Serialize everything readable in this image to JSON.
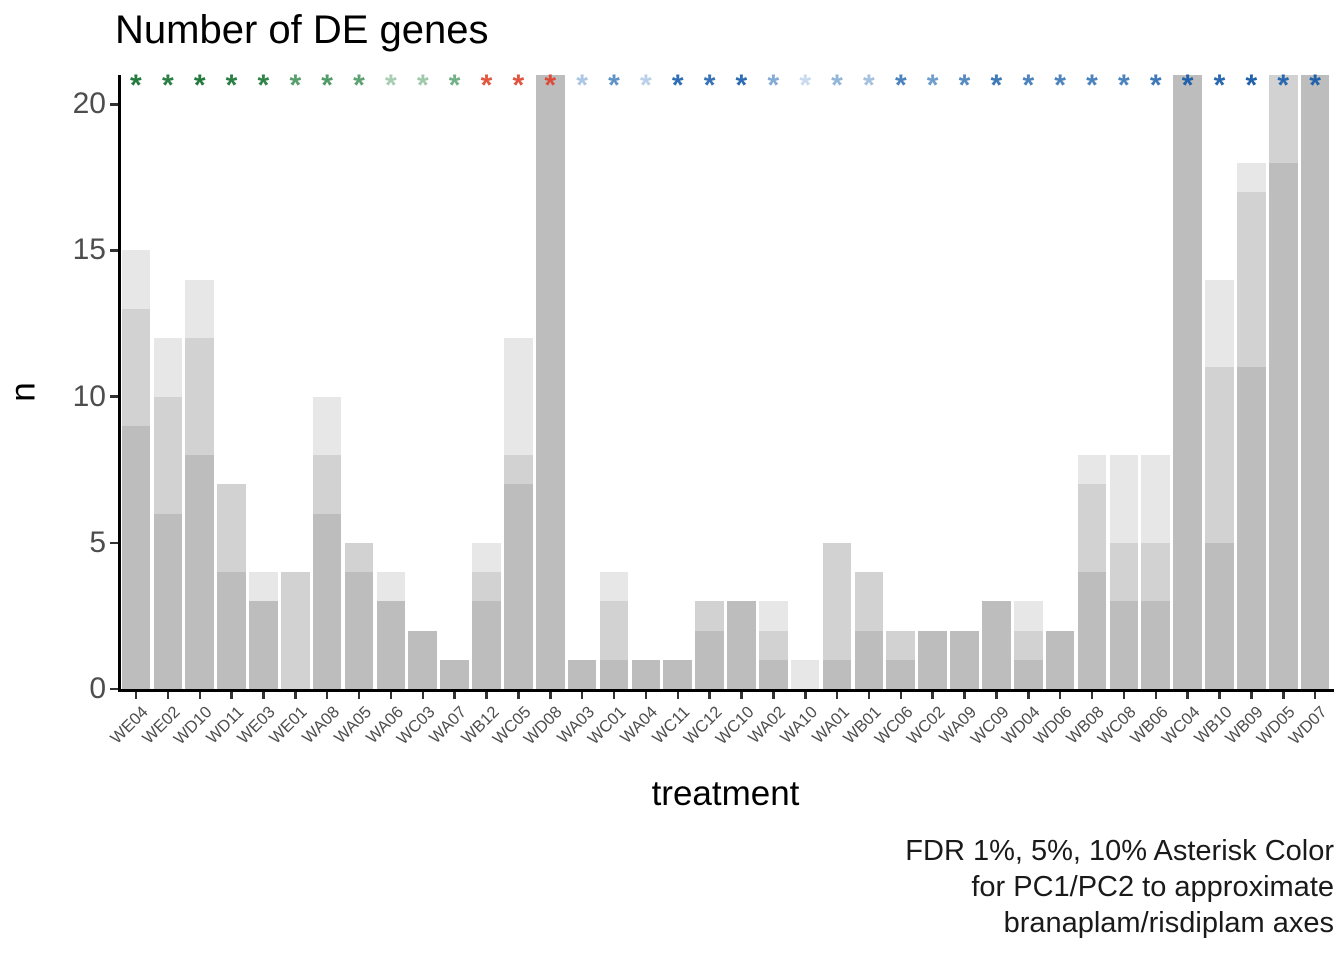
{
  "title": "Number of DE genes",
  "caption_lines": [
    "FDR 1%, 5%, 10% Asterisk Color",
    "for PC1/PC2 to approximate",
    "branaplam/risdiplam axes"
  ],
  "chart_data": {
    "type": "bar",
    "title": "Number of DE genes",
    "xlabel": "treatment",
    "ylabel": "n",
    "ylim": [
      0,
      21
    ],
    "y_ticks": [
      0,
      5,
      10,
      15,
      20
    ],
    "grid": false,
    "legend_position": "none",
    "note": "Three overlaid bar layers per treatment: number of DE genes at FDR 10% (lightest), 5% (medium), 1% (darkest); bars reaching 21 are clipped at the panel top; colored asterisk above each bar encodes FDR significance color for PC1/PC2",
    "bar_colors": {
      "fdr10": "#e7e7e7",
      "fdr5": "#d2d2d2",
      "fdr1": "#bdbdbd"
    },
    "categories": [
      "WE04",
      "WE02",
      "WD10",
      "WD11",
      "WE03",
      "WE01",
      "WA08",
      "WA05",
      "WA06",
      "WC03",
      "WA07",
      "WB12",
      "WC05",
      "WD08",
      "WA03",
      "WC01",
      "WA04",
      "WC11",
      "WC12",
      "WC10",
      "WA02",
      "WA10",
      "WA01",
      "WB01",
      "WC06",
      "WC02",
      "WA09",
      "WC09",
      "WD04",
      "WD06",
      "WB08",
      "WC08",
      "WB06",
      "WC04",
      "WB10",
      "WB09",
      "WD05",
      "WD07"
    ],
    "series": [
      {
        "name": "FDR 10%",
        "values": [
          15,
          12,
          14,
          7,
          4,
          4,
          10,
          5,
          4,
          2,
          1,
          5,
          12,
          21,
          1,
          4,
          1,
          1,
          3,
          3,
          3,
          1,
          5,
          4,
          2,
          2,
          2,
          3,
          3,
          2,
          8,
          8,
          8,
          21,
          14,
          18,
          21,
          21
        ]
      },
      {
        "name": "FDR 5%",
        "values": [
          13,
          10,
          12,
          7,
          3,
          4,
          8,
          5,
          3,
          2,
          1,
          4,
          8,
          21,
          1,
          3,
          1,
          1,
          3,
          3,
          2,
          0,
          5,
          4,
          2,
          2,
          2,
          3,
          2,
          2,
          7,
          5,
          5,
          21,
          11,
          17,
          21,
          21
        ]
      },
      {
        "name": "FDR 1%",
        "values": [
          9,
          6,
          8,
          4,
          3,
          0,
          6,
          4,
          3,
          2,
          1,
          3,
          7,
          21,
          1,
          1,
          1,
          1,
          2,
          3,
          1,
          0,
          1,
          2,
          1,
          2,
          2,
          3,
          1,
          2,
          4,
          3,
          3,
          21,
          5,
          11,
          18,
          21
        ]
      }
    ],
    "asterisk_symbol": "*",
    "asterisk_colors": [
      "#227a3c",
      "#2a7f44",
      "#227a3c",
      "#2a7f44",
      "#2f8347",
      "#569e6c",
      "#519b68",
      "#5ea272",
      "#a8cdb3",
      "#a0c9ac",
      "#74b086",
      "#e2573f",
      "#e05540",
      "#dc4c3a",
      "#abc7e3",
      "#5f92c6",
      "#b9d0e8",
      "#2f6eb4",
      "#3773b6",
      "#2d6cb3",
      "#84abd5",
      "#c8daee",
      "#92b5da",
      "#a5c1df",
      "#4a83be",
      "#6f9ecb",
      "#568ac1",
      "#3d78b8",
      "#4a83be",
      "#4a83be",
      "#4a83be",
      "#4a83be",
      "#3d78b8",
      "#2161a9",
      "#2968ae",
      "#2161a9",
      "#2968ae",
      "#2161a9"
    ]
  }
}
